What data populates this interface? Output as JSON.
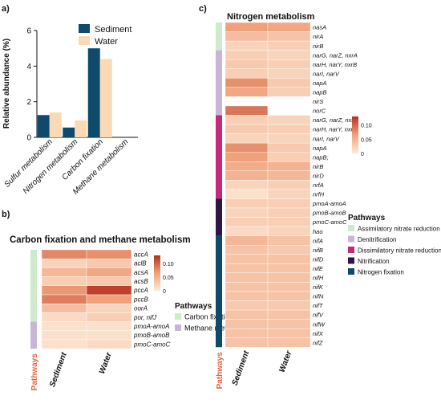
{
  "panels": {
    "a": "a)",
    "b": "b)",
    "c": "c)"
  },
  "colors": {
    "sediment": "#0d4a6b",
    "water": "#fbd9b5",
    "heat_low": "#fdebd9",
    "heat_mid": "#f0a17c",
    "heat_high": "#b5301f",
    "carbon_fixation": "#cfe9cc",
    "methane_metabolism": "#c9b6d7",
    "assimilatory": "#cfe9cc",
    "denitrification": "#c9b6d7",
    "dissimilatory": "#c7297a",
    "nitrification": "#2a1748",
    "nitrogen_fixation": "#0d4a6b"
  },
  "chart_data": [
    {
      "type": "bar",
      "panel": "a",
      "ylabel": "Relative abundance (%)",
      "xlabel": "",
      "ylim": [
        0,
        6
      ],
      "yticks": [
        "0",
        "2",
        "4",
        "6"
      ],
      "legend_position": "top-right",
      "categories": [
        "Sulfur metabolism",
        "Nitrogen metabolism",
        "Carbon fixation",
        "Methane metabolism"
      ],
      "series": [
        {
          "name": "Sediment",
          "values": [
            1.25,
            0.55,
            5.0,
            0.0
          ]
        },
        {
          "name": "Water",
          "values": [
            1.4,
            0.95,
            4.4,
            0.0
          ]
        }
      ]
    },
    {
      "type": "heatmap",
      "panel": "b",
      "title": "Carbon fixation and methane metabolism",
      "columns": [
        "Sediment",
        "Water"
      ],
      "rows": [
        "accA",
        "aclB",
        "acsA",
        "acsB",
        "pccA",
        "pccB",
        "oorA",
        "por, nifJ",
        "pmoA-amoA",
        "pmoB-amoB",
        "pmoC-amoC"
      ],
      "values": [
        [
          0.08,
          0.075
        ],
        [
          0.02,
          0.03
        ],
        [
          0.045,
          0.06
        ],
        [
          0.025,
          0.03
        ],
        [
          0.07,
          0.12
        ],
        [
          0.085,
          0.065
        ],
        [
          0.04,
          0.02
        ],
        [
          0.015,
          0.025
        ],
        [
          0.01,
          0.01
        ],
        [
          0.01,
          0.01
        ],
        [
          0.01,
          0.015
        ]
      ],
      "colorbar_ticks": [
        "0.10",
        "0.05",
        "0"
      ],
      "colorbar_range": [
        0,
        0.13
      ],
      "pathway_axis_label": "Pathways",
      "pathway_groups": [
        {
          "name": "Carbon fixation",
          "rows": 8
        },
        {
          "name": "Methane metabolism",
          "rows": 3
        }
      ],
      "legend_title": "Pathways"
    },
    {
      "type": "heatmap",
      "panel": "c",
      "title": "Nitrogen metabolism",
      "columns": [
        "Sediment",
        "Water"
      ],
      "rows": [
        "nasA",
        "nirA",
        "nirB",
        "narG, narZ, nxrA",
        "narH, narY, nxrB",
        "narI, narV",
        "napA",
        "napB",
        "nirS",
        "norC",
        "narG, narZ, nxrA",
        "narH, narY, nxrB",
        "narI, narV",
        "napA",
        "napB;",
        "nirB",
        "nirD",
        "nrfA",
        "nrfH",
        "pmoA-amoA",
        "pmoB-amoB",
        "pmoC-amoC",
        "hao",
        "nifA",
        "nifB",
        "nifD",
        "nifE",
        "nifH",
        "nifK",
        "nifN",
        "nifT",
        "nifV",
        "nifW",
        "nifX",
        "nifZ"
      ],
      "values": [
        [
          0.065,
          0.06
        ],
        [
          0.04,
          0.035
        ],
        [
          0.02,
          0.025
        ],
        [
          0.025,
          0.02
        ],
        [
          0.03,
          0.025
        ],
        [
          0.025,
          0.02
        ],
        [
          0.075,
          0.03
        ],
        [
          0.06,
          0.025
        ],
        [
          0.0,
          0.0
        ],
        [
          0.09,
          0.0
        ],
        [
          0.025,
          0.02
        ],
        [
          0.03,
          0.025
        ],
        [
          0.02,
          0.02
        ],
        [
          0.075,
          0.03
        ],
        [
          0.065,
          0.025
        ],
        [
          0.055,
          0.05
        ],
        [
          0.05,
          0.045
        ],
        [
          0.02,
          0.025
        ],
        [
          0.01,
          0.02
        ],
        [
          0.025,
          0.025
        ],
        [
          0.02,
          0.025
        ],
        [
          0.025,
          0.025
        ],
        [
          0.015,
          0.02
        ],
        [
          0.045,
          0.035
        ],
        [
          0.035,
          0.03
        ],
        [
          0.035,
          0.035
        ],
        [
          0.035,
          0.035
        ],
        [
          0.035,
          0.035
        ],
        [
          0.035,
          0.035
        ],
        [
          0.035,
          0.035
        ],
        [
          0.03,
          0.03
        ],
        [
          0.035,
          0.035
        ],
        [
          0.035,
          0.035
        ],
        [
          0.035,
          0.035
        ],
        [
          0.035,
          0.035
        ]
      ],
      "colorbar_ticks": [
        "0.10",
        "0.05",
        "0"
      ],
      "colorbar_range": [
        0,
        0.13
      ],
      "pathway_axis_label": "Pathways",
      "pathway_groups": [
        {
          "name": "Assimilatory nitrate reduction",
          "rows": 3
        },
        {
          "name": "Denitrification",
          "rows": 7
        },
        {
          "name": "Dissimilatory nitrate reduction",
          "rows": 9
        },
        {
          "name": "Nitrification",
          "rows": 4
        },
        {
          "name": "Nitrogen fixation",
          "rows": 12
        }
      ],
      "legend_title": "Pathways"
    }
  ]
}
